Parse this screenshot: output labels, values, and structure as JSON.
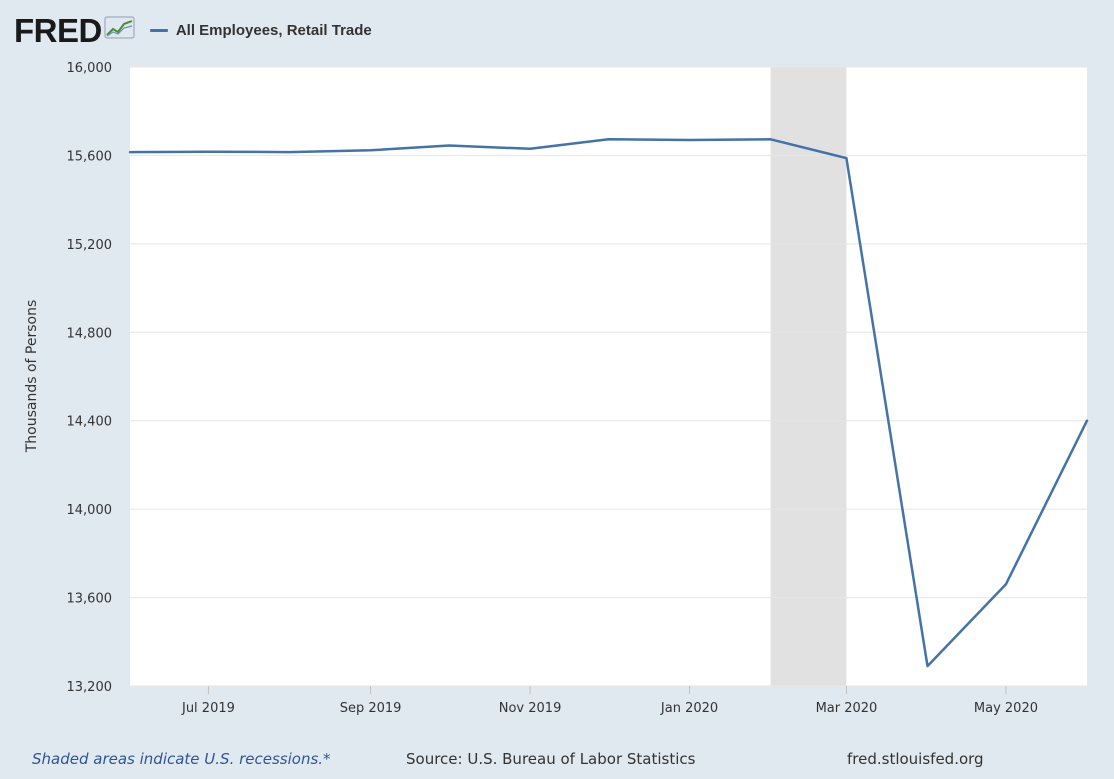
{
  "brand": {
    "logo_text": "FRED",
    "icon": "fred-trend-graph-icon"
  },
  "legend": {
    "label": "All Employees, Retail Trade",
    "color": "#4572a7"
  },
  "footer": {
    "recession_note": "Shaded areas indicate U.S. recessions.*",
    "source": "Source: U.S. Bureau of Labor Statistics",
    "site": "fred.stlouisfed.org"
  },
  "chart_data": {
    "type": "line",
    "ylabel": "Thousands of Persons",
    "ylim": [
      13200,
      16000
    ],
    "yticks": [
      13200,
      13600,
      14000,
      14400,
      14800,
      15200,
      15600,
      16000
    ],
    "xlim": [
      "2019-06-01",
      "2020-06-01"
    ],
    "xticks": [
      {
        "date": "2019-07-01",
        "label": "Jul 2019"
      },
      {
        "date": "2019-09-01",
        "label": "Sep 2019"
      },
      {
        "date": "2019-11-01",
        "label": "Nov 2019"
      },
      {
        "date": "2020-01-01",
        "label": "Jan 2020"
      },
      {
        "date": "2020-03-01",
        "label": "Mar 2020"
      },
      {
        "date": "2020-05-01",
        "label": "May 2020"
      }
    ],
    "recessions": [
      {
        "start": "2020-02-01",
        "end": "2020-03-01"
      }
    ],
    "grid": true,
    "series": [
      {
        "name": "All Employees, Retail Trade",
        "color": "#4572a7",
        "points": [
          {
            "x": "2019-06-01",
            "y": 15615
          },
          {
            "x": "2019-07-01",
            "y": 15617
          },
          {
            "x": "2019-08-01",
            "y": 15615
          },
          {
            "x": "2019-09-01",
            "y": 15623
          },
          {
            "x": "2019-10-01",
            "y": 15645
          },
          {
            "x": "2019-11-01",
            "y": 15630
          },
          {
            "x": "2019-12-01",
            "y": 15673
          },
          {
            "x": "2020-01-01",
            "y": 15670
          },
          {
            "x": "2020-02-01",
            "y": 15673
          },
          {
            "x": "2020-03-01",
            "y": 15588
          },
          {
            "x": "2020-04-01",
            "y": 13290
          },
          {
            "x": "2020-05-01",
            "y": 13660
          },
          {
            "x": "2020-06-01",
            "y": 14400
          }
        ]
      }
    ]
  }
}
